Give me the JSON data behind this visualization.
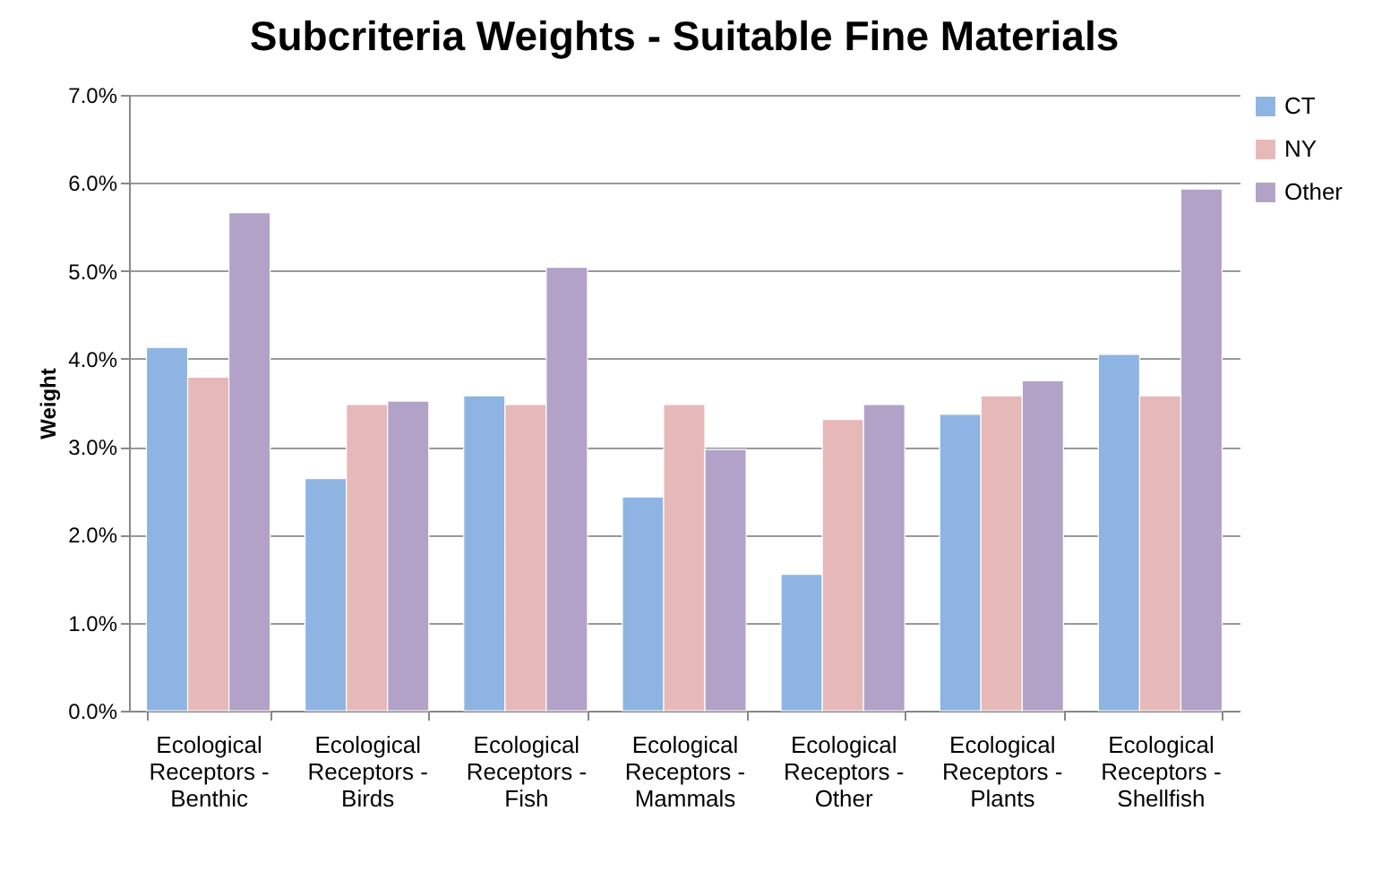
{
  "chart_data": {
    "type": "bar",
    "title": "Subcriteria Weights - Suitable Fine Materials",
    "ylabel": "Weight",
    "categories": [
      "Ecological Receptors - Benthic",
      "Ecological Receptors - Birds",
      "Ecological Receptors - Fish",
      "Ecological Receptors - Mammals",
      "Ecological Receptors - Other",
      "Ecological Receptors - Plants",
      "Ecological Receptors - Shellfish"
    ],
    "series": [
      {
        "name": "CT",
        "color": "#8eb4e3",
        "values": [
          4.13,
          2.64,
          3.58,
          2.43,
          1.55,
          3.37,
          4.05
        ]
      },
      {
        "name": "NY",
        "color": "#e6b9b8",
        "values": [
          3.79,
          3.48,
          3.48,
          3.48,
          3.31,
          3.58,
          3.58
        ]
      },
      {
        "name": "Other",
        "color": "#b3a2c7",
        "values": [
          5.66,
          3.52,
          5.04,
          2.97,
          3.48,
          3.75,
          5.93
        ]
      }
    ],
    "ylim": [
      0,
      7
    ],
    "yticks": [
      {
        "value": 0,
        "label": "0.0%"
      },
      {
        "value": 1,
        "label": "1.0%"
      },
      {
        "value": 2,
        "label": "2.0%"
      },
      {
        "value": 3,
        "label": "3.0%"
      },
      {
        "value": 4,
        "label": "4.0%"
      },
      {
        "value": 5,
        "label": "5.0%"
      },
      {
        "value": 6,
        "label": "6.0%"
      },
      {
        "value": 7,
        "label": "7.0%"
      }
    ],
    "grid": "y",
    "legend": "right"
  }
}
